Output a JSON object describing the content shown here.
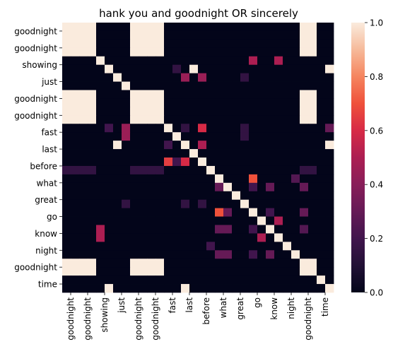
{
  "chart_data": {
    "type": "heatmap",
    "title": "hank you and goodnight OR sincerely",
    "xlabel": "",
    "ylabel": "",
    "labels": [
      "goodnight",
      "goodnight",
      "showing",
      "just",
      "goodnight",
      "goodnight",
      "fast",
      "last",
      "before",
      "what",
      "great",
      "go",
      "know",
      "night",
      "goodnight",
      "time"
    ],
    "x_tick_labels": [
      "goodnight",
      "goodnight",
      "showing",
      "just",
      "goodnight",
      "goodnight",
      "fast",
      "last",
      "before",
      "what",
      "great",
      "go",
      "know",
      "night",
      "goodnight",
      "time"
    ],
    "y_tick_labels": [
      "goodnight",
      "goodnight",
      "showing",
      "just",
      "goodnight",
      "goodnight",
      "fast",
      "last",
      "before",
      "what",
      "great",
      "go",
      "know",
      "night",
      "goodnight",
      "time"
    ],
    "n": 32,
    "colorbar": {
      "min": 0.0,
      "max": 1.0,
      "ticks": [
        "0.0",
        "0.2",
        "0.4",
        "0.6",
        "0.8",
        "1.0"
      ],
      "colormap": "rocket"
    },
    "rows": [
      [
        1,
        1,
        1,
        1,
        0,
        0,
        0,
        0,
        1,
        1,
        1,
        1,
        0,
        0,
        0,
        0,
        0,
        0,
        0,
        0,
        0,
        0,
        0,
        0,
        0,
        0,
        0,
        0,
        1,
        1,
        0,
        0
      ],
      [
        1,
        1,
        1,
        1,
        0,
        0,
        0,
        0,
        1,
        1,
        1,
        1,
        0,
        0,
        0,
        0,
        0,
        0,
        0,
        0,
        0,
        0,
        0,
        0,
        0,
        0,
        0,
        0,
        1,
        1,
        0,
        0
      ],
      [
        1,
        1,
        1,
        1,
        0,
        0,
        0,
        0,
        1,
        1,
        1,
        1,
        0,
        0,
        0,
        0,
        0,
        0,
        0,
        0,
        0,
        0,
        0,
        0,
        0,
        0,
        0,
        0,
        1,
        1,
        0,
        0
      ],
      [
        1,
        1,
        1,
        1,
        0,
        0,
        0,
        0,
        1,
        1,
        1,
        1,
        0,
        0,
        0,
        0,
        0,
        0,
        0,
        0,
        0,
        0,
        0,
        0,
        0,
        0,
        0,
        0,
        1,
        1,
        0,
        0
      ],
      [
        0,
        0,
        0,
        0,
        1,
        0,
        0,
        0,
        0,
        0,
        0,
        0,
        0,
        0,
        0,
        0,
        0,
        0,
        0,
        0,
        0,
        0,
        0.5,
        0,
        0,
        0.5,
        0,
        0,
        0,
        0,
        0,
        0
      ],
      [
        0,
        0,
        0,
        0,
        0,
        1,
        0,
        0,
        0,
        0,
        0,
        0,
        0,
        0.15,
        0,
        1,
        0,
        0,
        0,
        0,
        0,
        0,
        0,
        0,
        0,
        0,
        0,
        0,
        0,
        0,
        0,
        1
      ],
      [
        0,
        0,
        0,
        0,
        0,
        0,
        1,
        0,
        0,
        0,
        0,
        0,
        0,
        0,
        0.45,
        0,
        0.45,
        0,
        0,
        0,
        0,
        0.15,
        0,
        0,
        0,
        0,
        0,
        0,
        0,
        0,
        0,
        0
      ],
      [
        0,
        0,
        0,
        0,
        0,
        0,
        0,
        1,
        0,
        0,
        0,
        0,
        0,
        0,
        0,
        0,
        0,
        0,
        0,
        0,
        0,
        0,
        0,
        0,
        0,
        0,
        0,
        0,
        0,
        0,
        0,
        0
      ],
      [
        1,
        1,
        1,
        1,
        0,
        0,
        0,
        0,
        1,
        1,
        1,
        1,
        0,
        0,
        0,
        0,
        0,
        0,
        0,
        0,
        0,
        0,
        0,
        0,
        0,
        0,
        0,
        0,
        1,
        1,
        0,
        0
      ],
      [
        1,
        1,
        1,
        1,
        0,
        0,
        0,
        0,
        1,
        1,
        1,
        1,
        0,
        0,
        0,
        0,
        0,
        0,
        0,
        0,
        0,
        0,
        0,
        0,
        0,
        0,
        0,
        0,
        1,
        1,
        0,
        0
      ],
      [
        1,
        1,
        1,
        1,
        0,
        0,
        0,
        0,
        1,
        1,
        1,
        1,
        0,
        0,
        0,
        0,
        0,
        0,
        0,
        0,
        0,
        0,
        0,
        0,
        0,
        0,
        0,
        0,
        1,
        1,
        0,
        0
      ],
      [
        1,
        1,
        1,
        1,
        0,
        0,
        0,
        0,
        1,
        1,
        1,
        1,
        0,
        0,
        0,
        0,
        0,
        0,
        0,
        0,
        0,
        0,
        0,
        0,
        0,
        0,
        0,
        0,
        1,
        1,
        0,
        0
      ],
      [
        0,
        0,
        0,
        0,
        0,
        0.2,
        0,
        0.45,
        0,
        0,
        0,
        0,
        1,
        0,
        0.15,
        0,
        0.6,
        0,
        0,
        0,
        0,
        0.15,
        0,
        0,
        0,
        0,
        0,
        0,
        0,
        0,
        0,
        0.3
      ],
      [
        0,
        0,
        0,
        0,
        0,
        0,
        0,
        0.45,
        0,
        0,
        0,
        0,
        0,
        1,
        0,
        0,
        0,
        0,
        0,
        0,
        0,
        0.15,
        0,
        0,
        0,
        0,
        0,
        0,
        0,
        0,
        0,
        0
      ],
      [
        0,
        0,
        0,
        0,
        0,
        0,
        1,
        0,
        0,
        0,
        0,
        0,
        0.2,
        0,
        1,
        0,
        0.5,
        0,
        0,
        0,
        0,
        0,
        0,
        0,
        0,
        0,
        0,
        0,
        0,
        0,
        0,
        1
      ],
      [
        0,
        0,
        0,
        0,
        0,
        0,
        0,
        0,
        0,
        0,
        0,
        0,
        0,
        0,
        0,
        1,
        0,
        0,
        0,
        0,
        0,
        0,
        0,
        0,
        0,
        0,
        0,
        0,
        0,
        0,
        0,
        0
      ],
      [
        0,
        0,
        0,
        0,
        0,
        0,
        0,
        0,
        0,
        0,
        0,
        0,
        0.65,
        0.2,
        0.6,
        0,
        1,
        0,
        0,
        0,
        0,
        0,
        0,
        0,
        0,
        0,
        0,
        0,
        0,
        0,
        0,
        0
      ],
      [
        0.15,
        0.15,
        0.15,
        0.15,
        0,
        0,
        0,
        0,
        0.15,
        0.15,
        0.15,
        0.15,
        0,
        0,
        0,
        0,
        0,
        1,
        0,
        0,
        0,
        0,
        0,
        0,
        0,
        0,
        0,
        0,
        0.15,
        0.15,
        0,
        0
      ],
      [
        0,
        0,
        0,
        0,
        0,
        0,
        0,
        0,
        0,
        0,
        0,
        0,
        0,
        0,
        0,
        0,
        0,
        0,
        1,
        0,
        0,
        0,
        0.7,
        0,
        0,
        0,
        0,
        0.25,
        0,
        0,
        0,
        0
      ],
      [
        0,
        0,
        0,
        0,
        0,
        0,
        0,
        0,
        0,
        0,
        0,
        0,
        0,
        0,
        0,
        0,
        0,
        0,
        0.3,
        1,
        0,
        0,
        0.2,
        0,
        0.3,
        0,
        0,
        0,
        0.3,
        0,
        0,
        0
      ],
      [
        0,
        0,
        0,
        0,
        0,
        0,
        0,
        0,
        0,
        0,
        0,
        0,
        0,
        0,
        0,
        0,
        0,
        0,
        0,
        0,
        1,
        0,
        0,
        0,
        0,
        0,
        0,
        0,
        0,
        0,
        0,
        0
      ],
      [
        0,
        0,
        0,
        0,
        0,
        0,
        0,
        0.15,
        0,
        0,
        0,
        0,
        0,
        0,
        0.15,
        0,
        0.15,
        0,
        0,
        0,
        0,
        1,
        0,
        0,
        0,
        0,
        0,
        0,
        0,
        0,
        0,
        0
      ],
      [
        0,
        0,
        0,
        0,
        0,
        0,
        0,
        0,
        0,
        0,
        0,
        0,
        0,
        0,
        0,
        0,
        0,
        0,
        0.7,
        0.3,
        0,
        0,
        1,
        0,
        0.2,
        0,
        0,
        0,
        0.3,
        0,
        0,
        0
      ],
      [
        0,
        0,
        0,
        0,
        0,
        0,
        0,
        0,
        0,
        0,
        0,
        0,
        0,
        0,
        0,
        0,
        0,
        0,
        0,
        0,
        0,
        0,
        0,
        1,
        0,
        0.5,
        0,
        0,
        0,
        0,
        0,
        0
      ],
      [
        0,
        0,
        0,
        0,
        0.5,
        0,
        0,
        0,
        0,
        0,
        0,
        0,
        0,
        0,
        0,
        0,
        0,
        0,
        0.3,
        0.3,
        0,
        0,
        0.2,
        0,
        1,
        0,
        0,
        0,
        0.25,
        0,
        0,
        0
      ],
      [
        0,
        0,
        0,
        0,
        0.5,
        0,
        0,
        0,
        0,
        0,
        0,
        0,
        0,
        0,
        0,
        0,
        0,
        0,
        0,
        0,
        0,
        0,
        0,
        0.5,
        0,
        1,
        0,
        0,
        0,
        0,
        0,
        0
      ],
      [
        0,
        0,
        0,
        0,
        0,
        0,
        0,
        0,
        0,
        0,
        0,
        0,
        0,
        0,
        0,
        0,
        0,
        0.2,
        0,
        0,
        0,
        0,
        0,
        0,
        0,
        0,
        1,
        0,
        0,
        0,
        0,
        0
      ],
      [
        0,
        0,
        0,
        0,
        0,
        0,
        0,
        0,
        0,
        0,
        0,
        0,
        0,
        0,
        0,
        0,
        0,
        0,
        0.3,
        0.3,
        0,
        0,
        0.2,
        0,
        0.3,
        0,
        0,
        1,
        0,
        0,
        0,
        0
      ],
      [
        1,
        1,
        1,
        1,
        0,
        0,
        0,
        0,
        1,
        1,
        1,
        1,
        0,
        0,
        0,
        0,
        0,
        0,
        0,
        0,
        0,
        0,
        0,
        0,
        0,
        0,
        0,
        0,
        1,
        1,
        0,
        0
      ],
      [
        1,
        1,
        1,
        1,
        0,
        0,
        0,
        0,
        1,
        1,
        1,
        1,
        0,
        0,
        0,
        0,
        0,
        0,
        0,
        0,
        0,
        0,
        0,
        0,
        0,
        0,
        0,
        0,
        1,
        1,
        0,
        0
      ],
      [
        0,
        0,
        0,
        0,
        0,
        0,
        0,
        0,
        0,
        0,
        0,
        0,
        0,
        0,
        0,
        0,
        0,
        0,
        0,
        0,
        0,
        0,
        0,
        0,
        0,
        0,
        0,
        0,
        0,
        0,
        1,
        0
      ],
      [
        0,
        0,
        0,
        0,
        0,
        1,
        0,
        0,
        0,
        0,
        0,
        0,
        0,
        0,
        1,
        0,
        0,
        0,
        0,
        0,
        0,
        0,
        0,
        0,
        0,
        0,
        0,
        0,
        0,
        0,
        0,
        1
      ]
    ]
  }
}
